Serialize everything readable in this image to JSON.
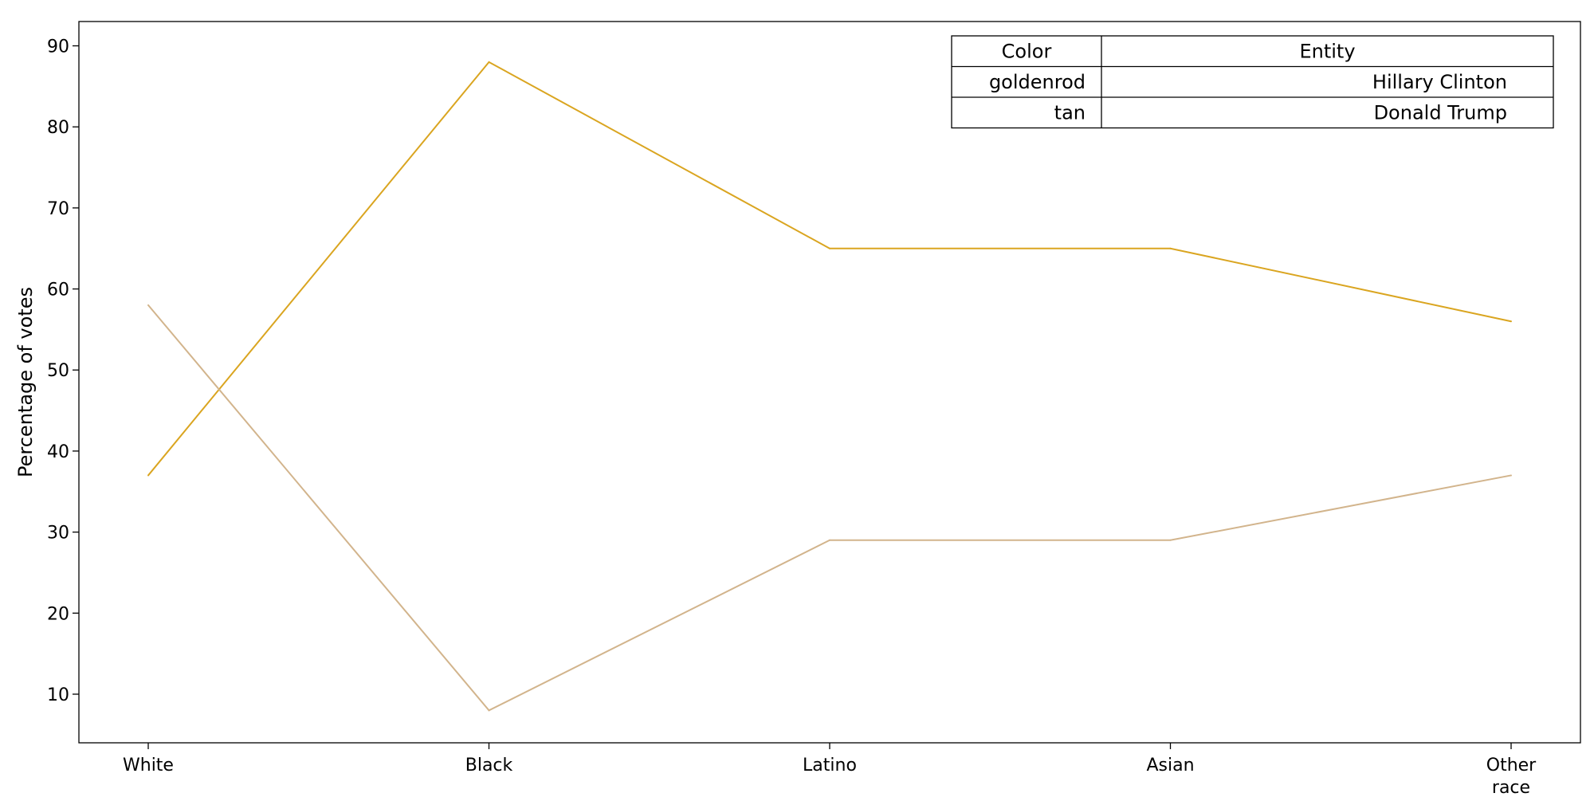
{
  "chart_data": {
    "type": "line",
    "categories": [
      "White",
      "Black",
      "Latino",
      "Asian",
      "Other race"
    ],
    "category_tick_lines": [
      [
        "White"
      ],
      [
        "Black"
      ],
      [
        "Latino"
      ],
      [
        "Asian"
      ],
      [
        "Other",
        "race"
      ]
    ],
    "ylabel": "Percentage of votes",
    "xlabel": "",
    "title": "",
    "ylim": [
      4.0,
      93.0
    ],
    "yticks": [
      10,
      20,
      30,
      40,
      50,
      60,
      70,
      80,
      90
    ],
    "grid": false,
    "series": [
      {
        "name": "Hillary Clinton",
        "color": "#daa520",
        "values": [
          37,
          88,
          65,
          65,
          56
        ]
      },
      {
        "name": "Donald Trump",
        "color": "#d2b48c",
        "values": [
          58,
          8,
          29,
          29,
          37
        ]
      }
    ],
    "legend": {
      "placement": "top-right",
      "style": "table",
      "header": [
        "Color",
        "Entity"
      ],
      "rows": [
        [
          "goldenrod",
          "Hillary Clinton"
        ],
        [
          "tan",
          "Donald Trump"
        ]
      ]
    }
  }
}
